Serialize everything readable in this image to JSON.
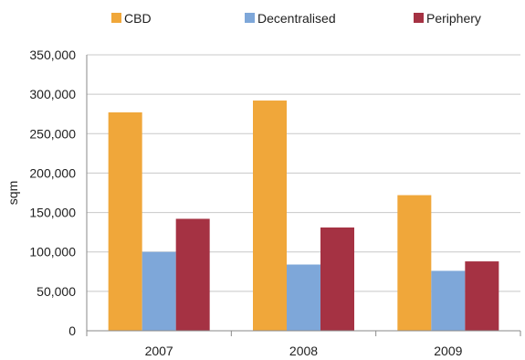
{
  "chart_data": {
    "type": "bar",
    "categories": [
      "2007",
      "2008",
      "2009"
    ],
    "series": [
      {
        "name": "CBD",
        "color": "#F0A73A",
        "values": [
          277000,
          292000,
          172000
        ]
      },
      {
        "name": "Decentralised",
        "color": "#7EA7D9",
        "values": [
          100000,
          84000,
          76000
        ]
      },
      {
        "name": "Periphery",
        "color": "#A53243",
        "values": [
          142000,
          131000,
          88000
        ]
      }
    ],
    "ylabel": "sqm",
    "xlabel": "",
    "ylim": [
      0,
      350000
    ],
    "yticks": [
      0,
      50000,
      100000,
      150000,
      200000,
      250000,
      300000,
      350000
    ],
    "ytick_labels": [
      "0",
      "50,000",
      "100,000",
      "150,000",
      "200,000",
      "250,000",
      "300,000",
      "350,000"
    ],
    "grid": true,
    "legend_position": "top",
    "axis_color": "#8a8a8a",
    "grid_color": "#c8c8c8"
  }
}
